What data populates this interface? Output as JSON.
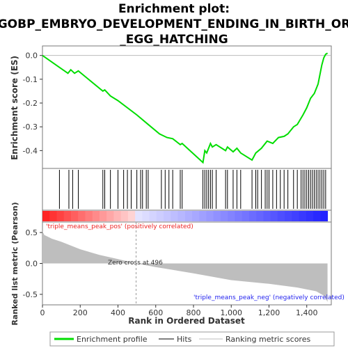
{
  "chart_data": {
    "type": "line",
    "title_lines": [
      "Enrichment plot:",
      "GOBP_EMBRYO_DEVELOPMENT_ENDING_IN_BIRTH_OR",
      "_EGG_HATCHING"
    ],
    "enrichment_panel": {
      "ylabel": "Enrichment score (ES)",
      "ylim": [
        -0.475,
        0.04
      ],
      "yticks": [
        0.0,
        -0.1,
        -0.2,
        -0.3,
        -0.4
      ],
      "ytick_labels": [
        "0.0",
        "-0.1",
        "-0.2",
        "-0.3",
        "-0.4"
      ],
      "line_color": "#00dd00",
      "x": [
        0,
        90,
        135,
        150,
        170,
        190,
        320,
        330,
        360,
        400,
        500,
        560,
        620,
        660,
        690,
        730,
        740,
        850,
        860,
        870,
        880,
        890,
        900,
        920,
        970,
        980,
        1010,
        1030,
        1050,
        1110,
        1130,
        1160,
        1190,
        1220,
        1250,
        1280,
        1300,
        1330,
        1350,
        1380,
        1400,
        1420,
        1440,
        1460,
        1470,
        1480,
        1490,
        1500,
        1510
      ],
      "y": [
        0.0,
        -0.05,
        -0.075,
        -0.06,
        -0.075,
        -0.065,
        -0.15,
        -0.145,
        -0.17,
        -0.19,
        -0.25,
        -0.29,
        -0.33,
        -0.345,
        -0.35,
        -0.375,
        -0.37,
        -0.45,
        -0.4,
        -0.41,
        -0.39,
        -0.37,
        -0.385,
        -0.375,
        -0.4,
        -0.385,
        -0.405,
        -0.39,
        -0.41,
        -0.44,
        -0.41,
        -0.39,
        -0.36,
        -0.37,
        -0.345,
        -0.34,
        -0.33,
        -0.3,
        -0.29,
        -0.25,
        -0.22,
        -0.18,
        -0.16,
        -0.12,
        -0.08,
        -0.04,
        -0.01,
        0.005,
        0.01
      ]
    },
    "hits": [
      90,
      140,
      160,
      190,
      320,
      330,
      360,
      400,
      430,
      450,
      470,
      500,
      520,
      530,
      550,
      560,
      630,
      650,
      670,
      690,
      730,
      740,
      850,
      860,
      870,
      880,
      890,
      900,
      920,
      970,
      980,
      1010,
      1030,
      1050,
      1110,
      1130,
      1140,
      1160,
      1180,
      1190,
      1200,
      1220,
      1240,
      1260,
      1280,
      1300,
      1330,
      1350,
      1370,
      1380,
      1390,
      1400,
      1410,
      1420,
      1430,
      1440,
      1450,
      1460,
      1470,
      1480,
      1490,
      1500
    ],
    "ranked_metric_panel": {
      "ylabel": "Ranked list metric (Pearson)",
      "ylim": [
        -0.67,
        0.67
      ],
      "yticks": [
        0.5,
        0.0,
        -0.5
      ],
      "ytick_labels": [
        "0.5",
        "0.0",
        "-0.5"
      ],
      "x": [
        0,
        10,
        50,
        100,
        200,
        300,
        400,
        496,
        600,
        800,
        1000,
        1200,
        1350,
        1450,
        1490,
        1510
      ],
      "y": [
        0.52,
        0.46,
        0.4,
        0.35,
        0.23,
        0.14,
        0.07,
        0.0,
        -0.06,
        -0.16,
        -0.27,
        -0.33,
        -0.39,
        -0.45,
        -0.52,
        -0.62
      ],
      "fill_color": "#bebebe",
      "zero_cross_label": "Zero cross at 496",
      "pos_label": "'triple_means_peak_pos' (positively correlated)",
      "neg_label": "'triple_means_peak_neg' (negatively correlated)",
      "pos_label_color": "#ee2222",
      "neg_label_color": "#2222ee"
    },
    "xlabel": "Rank in Ordered Dataset",
    "xlim": [
      0,
      1530
    ],
    "xticks": [
      0,
      200,
      400,
      600,
      800,
      1000,
      1200,
      1400
    ],
    "xtick_labels": [
      "0",
      "200",
      "400",
      "600",
      "800",
      "1,000",
      "1,200",
      "1,400"
    ],
    "legend": {
      "placement": "bottom",
      "entries": [
        {
          "label": "Enrichment profile",
          "color": "#00dd00"
        },
        {
          "label": "Hits",
          "color": "#000000"
        },
        {
          "label": "Ranking metric scores",
          "color": "#bebebe"
        }
      ]
    }
  }
}
